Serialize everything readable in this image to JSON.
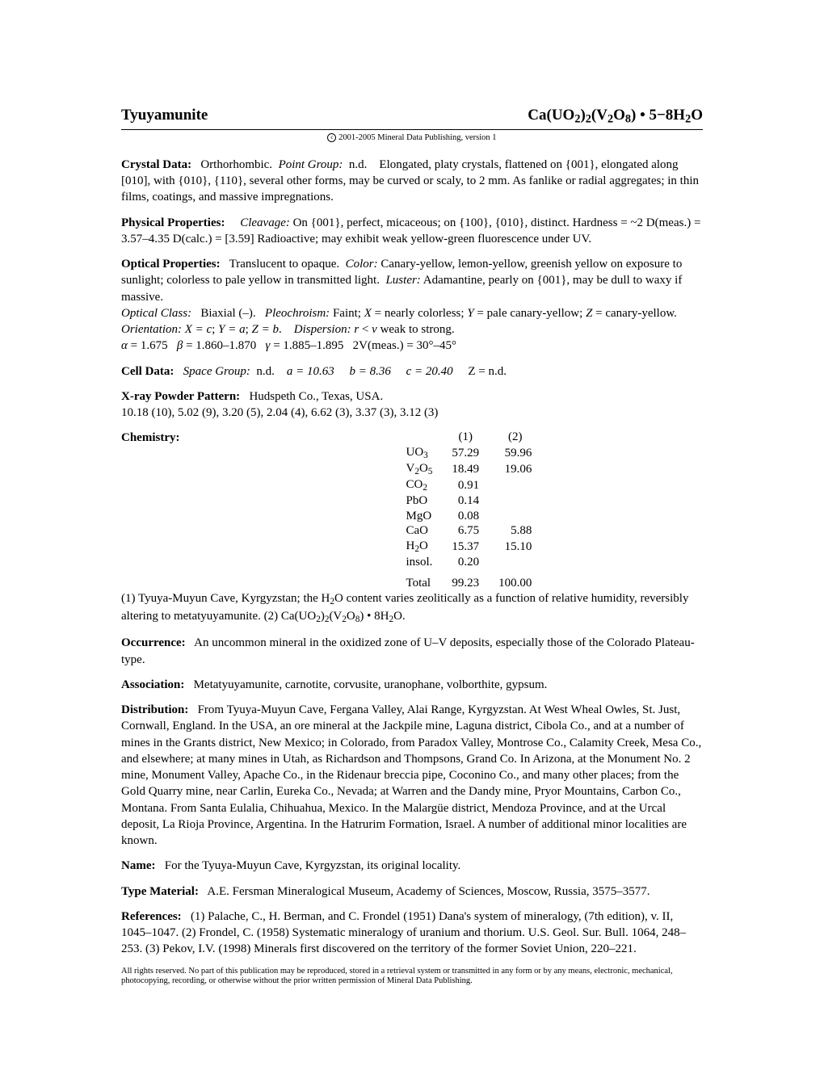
{
  "header": {
    "name": "Tyuyamunite",
    "formula_html": "Ca(UO<sub>2</sub>)<sub>2</sub>(V<sub>2</sub>O<sub>8</sub>)&nbsp;&bull;&nbsp;5&minus;8H<sub>2</sub>O"
  },
  "copyright": "2001-2005 Mineral Data Publishing, version 1",
  "crystal_data": {
    "label": "Crystal Data:",
    "system": "Orthorhombic.",
    "point_group_label": "Point Group:",
    "point_group": "n.d.",
    "desc": "Elongated, platy crystals, flattened on {001}, elongated along [010], with {010}, {110}, several other forms, may be curved or scaly, to 2 mm. As fanlike or radial aggregates; in thin films, coatings, and massive impregnations."
  },
  "physical": {
    "label": "Physical Properties:",
    "cleavage_label": "Cleavage:",
    "cleavage": "On {001}, perfect, micaceous; on {100}, {010}, distinct.",
    "hardness": "Hardness = ~2   D(meas.) = 3.57–4.35   D(calc.) = [3.59]   Radioactive; may exhibit weak yellow-green fluorescence under UV."
  },
  "optical": {
    "label": "Optical Properties:",
    "translucency": "Translucent to opaque.",
    "color_label": "Color:",
    "color": "Canary-yellow, lemon-yellow, greenish yellow on exposure to sunlight; colorless to pale yellow in transmitted light.",
    "luster_label": "Luster:",
    "luster": "Adamantine, pearly on {001}, may be dull to waxy if massive.",
    "class_label": "Optical Class:",
    "class": "Biaxial (–).",
    "pleo_label": "Pleochroism:",
    "pleo": "Faint; X = nearly colorless; Y = pale canary-yellow; Z = canary-yellow.",
    "orient_label": "Orientation:",
    "orient": "X = c; Y = a; Z = b.",
    "disp_label": "Dispersion:",
    "disp": "r < v weak to strong.",
    "indices": "α = 1.675   β = 1.860–1.870   γ = 1.885–1.895   2V(meas.) = 30°–45°"
  },
  "cell": {
    "label": "Cell Data:",
    "sg_label": "Space Group:",
    "sg": "n.d.",
    "a": "a = 10.63",
    "b": "b = 8.36",
    "c": "c = 20.40",
    "z": "Z = n.d."
  },
  "xray": {
    "label": "X-ray Powder Pattern:",
    "locality": "Hudspeth Co., Texas, USA.",
    "pattern": "10.18 (10), 5.02 (9), 3.20 (5), 2.04 (4), 6.62 (3), 3.37 (3), 3.12 (3)"
  },
  "chemistry": {
    "label": "Chemistry:",
    "columns": [
      "(1)",
      "(2)"
    ],
    "rows": [
      {
        "name_html": "UO<sub>3</sub>",
        "v1": "57.29",
        "v2": "59.96"
      },
      {
        "name_html": "V<sub>2</sub>O<sub>5</sub>",
        "v1": "18.49",
        "v2": "19.06"
      },
      {
        "name_html": "CO<sub>2</sub>",
        "v1": "0.91",
        "v2": ""
      },
      {
        "name_html": "PbO",
        "v1": "0.14",
        "v2": ""
      },
      {
        "name_html": "MgO",
        "v1": "0.08",
        "v2": ""
      },
      {
        "name_html": "CaO",
        "v1": "6.75",
        "v2": "5.88"
      },
      {
        "name_html": "H<sub>2</sub>O",
        "v1": "15.37",
        "v2": "15.10"
      },
      {
        "name_html": "insol.",
        "v1": "0.20",
        "v2": ""
      }
    ],
    "total": {
      "name": "Total",
      "v1": "99.23",
      "v2": "100.00"
    },
    "note_html": "(1) Tyuya-Muyun Cave, Kyrgyzstan; the H<sub>2</sub>O content varies zeolitically as a function of relative humidity, reversibly altering to metatyuyamunite. (2) Ca(UO<sub>2</sub>)<sub>2</sub>(V<sub>2</sub>O<sub>8</sub>)&nbsp;&bull;&nbsp;8H<sub>2</sub>O."
  },
  "occurrence": {
    "label": "Occurrence:",
    "text": "An uncommon mineral in the oxidized zone of U–V deposits, especially those of the Colorado Plateau-type."
  },
  "association": {
    "label": "Association:",
    "text": "Metatyuyamunite, carnotite, corvusite, uranophane, volborthite, gypsum."
  },
  "distribution": {
    "label": "Distribution:",
    "text": "From Tyuya-Muyun Cave, Fergana Valley, Alai Range, Kyrgyzstan. At West Wheal Owles, St. Just, Cornwall, England. In the USA, an ore mineral at the Jackpile mine, Laguna district, Cibola Co., and at a number of mines in the Grants district, New Mexico; in Colorado, from Paradox Valley, Montrose Co., Calamity Creek, Mesa Co., and elsewhere; at many mines in Utah, as Richardson and Thompsons, Grand Co. In Arizona, at the Monument No. 2 mine, Monument Valley, Apache Co., in the Ridenaur breccia pipe, Coconino Co., and many other places; from the Gold Quarry mine, near Carlin, Eureka Co., Nevada; at Warren and the Dandy mine, Pryor Mountains, Carbon Co., Montana. From Santa Eulalia, Chihuahua, Mexico. In the Malargüe district, Mendoza Province, and at the Urcal deposit, La Rioja Province, Argentina. In the Hatrurim Formation, Israel. A number of additional minor localities are known."
  },
  "name_sec": {
    "label": "Name:",
    "text": "For the Tyuya-Muyun Cave, Kyrgyzstan, its original locality."
  },
  "type_material": {
    "label": "Type Material:",
    "text": "A.E. Fersman Mineralogical Museum, Academy of Sciences, Moscow, Russia, 3575–3577."
  },
  "references": {
    "label": "References:",
    "text": "(1) Palache, C., H. Berman, and C. Frondel (1951) Dana's system of mineralogy, (7th edition), v. II, 1045–1047. (2) Frondel, C. (1958) Systematic mineralogy of uranium and thorium. U.S. Geol. Sur. Bull. 1064, 248–253. (3) Pekov, I.V. (1998) Minerals first discovered on the territory of the former Soviet Union, 220–221."
  },
  "footer": "All rights reserved. No part of this publication may be reproduced, stored in a retrieval system or transmitted in any form or by any means, electronic, mechanical, photocopying, recording, or otherwise without the prior written permission of Mineral Data Publishing."
}
